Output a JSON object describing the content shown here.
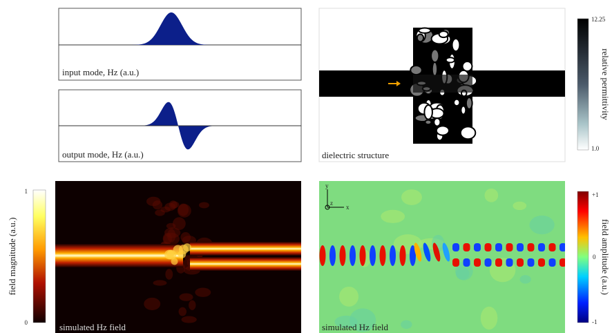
{
  "panels": {
    "input_mode": {
      "label": "input mode, Hz (a.u.)"
    },
    "output_mode": {
      "label": "output mode, Hz (a.u.)"
    },
    "dielectric": {
      "label": "dielectric structure",
      "colorbar": {
        "title": "relative permittivity",
        "max": "12.25",
        "min": "1.0"
      }
    },
    "field_magnitude": {
      "label": "simulated Hz field",
      "colorbar": {
        "title": "field magnitude (a.u.)",
        "max": "1",
        "min": "0"
      }
    },
    "field_amplitude": {
      "label": "simulated Hz field",
      "axes": {
        "y": "y",
        "x": "x",
        "z": "z"
      },
      "colorbar": {
        "title": "field amplitude (a.u.)",
        "max": "+1",
        "mid": "0",
        "min": "-1"
      }
    }
  }
}
